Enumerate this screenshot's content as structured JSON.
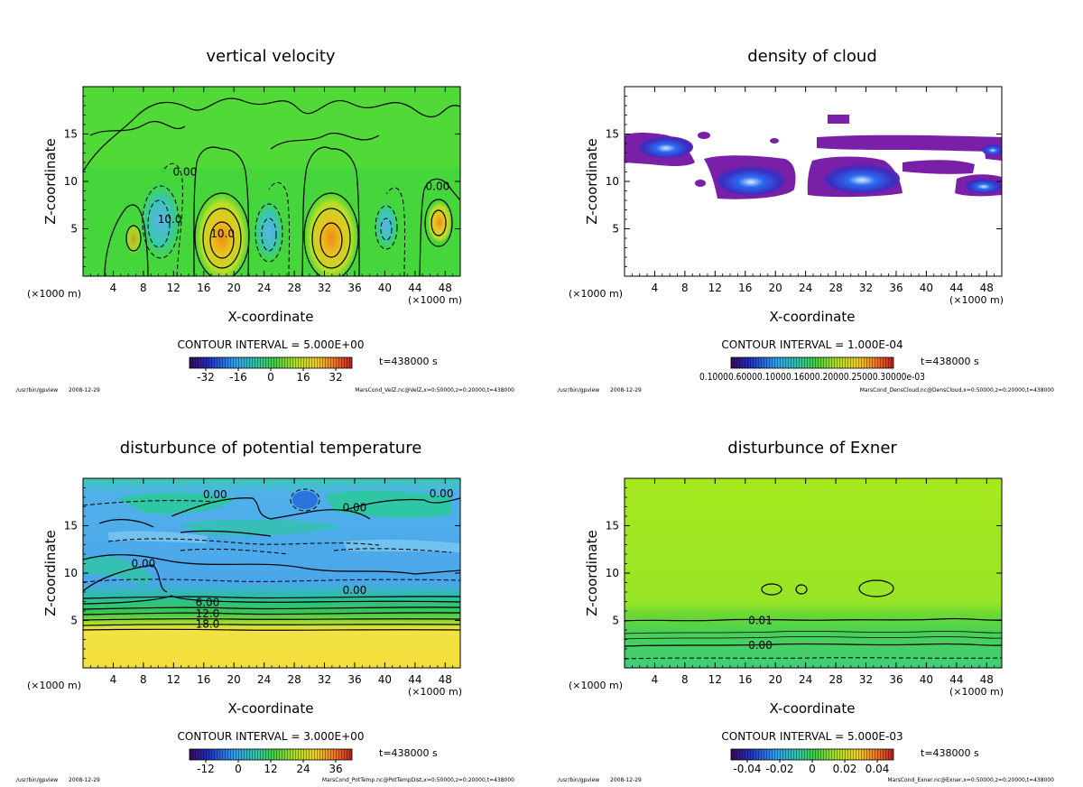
{
  "footer_path": "/usr/bin/gpview",
  "footer_date": "2008-12-29",
  "time_label": "t=438000 s",
  "chart_data": [
    {
      "id": "velz",
      "type": "heatmap",
      "title": "vertical velocity",
      "xlabel": "X-coordinate",
      "ylabel": "Z-coordinate",
      "xunit": "(×1000 m)",
      "xlim": [
        0,
        50
      ],
      "ylim": [
        0,
        20
      ],
      "xticks": [
        4,
        8,
        12,
        16,
        20,
        24,
        28,
        32,
        36,
        40,
        44,
        48
      ],
      "yticks": [
        5,
        10,
        15
      ],
      "grid": false,
      "contour_interval": "CONTOUR INTERVAL = 5.000E+00",
      "colorbar_ticks": [
        "-32",
        "-16",
        "0",
        "16",
        "32"
      ],
      "colorbar_range": [
        -40,
        40
      ],
      "contour_labels": [
        {
          "x": 18.5,
          "z": 4.5,
          "text": "10.0"
        },
        {
          "x": 11.5,
          "z": 6.0,
          "text": "10.0"
        },
        {
          "x": 13.5,
          "z": 11.0,
          "text": "0.00"
        },
        {
          "x": 47.0,
          "z": 9.5,
          "text": "0.00"
        }
      ],
      "source": "MarsCond_VelZ.nc@VelZ,x=0:50000,z=0:20000,t=438000",
      "colors": {
        "background": "#44d63a",
        "positive_peak": "#f07e18",
        "negative_peak": "#6fbfe8"
      }
    },
    {
      "id": "denscloud",
      "type": "heatmap",
      "title": "density of cloud",
      "xlabel": "X-coordinate",
      "ylabel": "Z-coordinate",
      "xunit": "(×1000 m)",
      "xlim": [
        0,
        50
      ],
      "ylim": [
        0,
        20
      ],
      "xticks": [
        4,
        8,
        12,
        16,
        20,
        24,
        28,
        32,
        36,
        40,
        44,
        48
      ],
      "yticks": [
        5,
        10,
        15
      ],
      "grid": false,
      "contour_interval": "CONTOUR INTERVAL = 1.000E-04",
      "colorbar_ticks": [
        "0.10000.60000.10000.16000.20000.25000.30000e-03"
      ],
      "colorbar_range": [
        0,
        0.00035
      ],
      "contour_labels": [],
      "source": "MarsCond_DensCloud.nc@DensCloud,x=0:50000,z=0:20000,t=438000",
      "colors": {
        "background": "#ffffff",
        "cloud": "#7a1fa8",
        "core": "#1a4fe0"
      }
    },
    {
      "id": "pottemp",
      "type": "heatmap",
      "title": "disturbunce of potential temperature",
      "xlabel": "X-coordinate",
      "ylabel": "Z-coordinate",
      "xunit": "(×1000 m)",
      "xlim": [
        0,
        50
      ],
      "ylim": [
        0,
        20
      ],
      "xticks": [
        4,
        8,
        12,
        16,
        20,
        24,
        28,
        32,
        36,
        40,
        44,
        48
      ],
      "yticks": [
        5,
        10,
        15
      ],
      "grid": false,
      "contour_interval": "CONTOUR INTERVAL = 3.000E+00",
      "colorbar_ticks": [
        "-12",
        "0",
        "12",
        "24",
        "36"
      ],
      "colorbar_range": [
        -18,
        42
      ],
      "contour_labels": [
        {
          "x": 17.5,
          "z": 18.3,
          "text": "0.00"
        },
        {
          "x": 47.5,
          "z": 18.4,
          "text": "0.00"
        },
        {
          "x": 36.0,
          "z": 16.9,
          "text": "0.00"
        },
        {
          "x": 8.0,
          "z": 11.0,
          "text": "0.00"
        },
        {
          "x": 36.0,
          "z": 8.2,
          "text": "0.00"
        },
        {
          "x": 16.5,
          "z": 6.9,
          "text": "6.00"
        },
        {
          "x": 16.5,
          "z": 5.7,
          "text": "12.0"
        },
        {
          "x": 16.5,
          "z": 4.6,
          "text": "18.0"
        }
      ],
      "source": "MarsCond_PotTemp.nc@PotTempDist,x=0:50000,z=0:20000,t=438000",
      "colors": {
        "upper": "#49a8e8",
        "band": "#2fc79c",
        "lower": "#f2e040"
      }
    },
    {
      "id": "exner",
      "type": "heatmap",
      "title": "disturbunce of Exner",
      "xlabel": "X-coordinate",
      "ylabel": "Z-coordinate",
      "xunit": "(×1000 m)",
      "xlim": [
        0,
        50
      ],
      "ylim": [
        0,
        20
      ],
      "xticks": [
        4,
        8,
        12,
        16,
        20,
        24,
        28,
        32,
        36,
        40,
        44,
        48
      ],
      "yticks": [
        5,
        10,
        15
      ],
      "grid": false,
      "contour_interval": "CONTOUR INTERVAL = 5.000E-03",
      "colorbar_ticks": [
        "-0.04",
        "-0.02",
        "0",
        "0.02",
        "0.04"
      ],
      "colorbar_range": [
        -0.05,
        0.05
      ],
      "contour_labels": [
        {
          "x": 18.0,
          "z": 5.0,
          "text": "0.01"
        },
        {
          "x": 18.0,
          "z": 2.4,
          "text": "0.00"
        }
      ],
      "source": "MarsCond_Exner.nc@Exner,x=0:50000,z=0:20000,t=438000",
      "colors": {
        "upper": "#a6e81e",
        "lower": "#3fd07a"
      }
    }
  ]
}
